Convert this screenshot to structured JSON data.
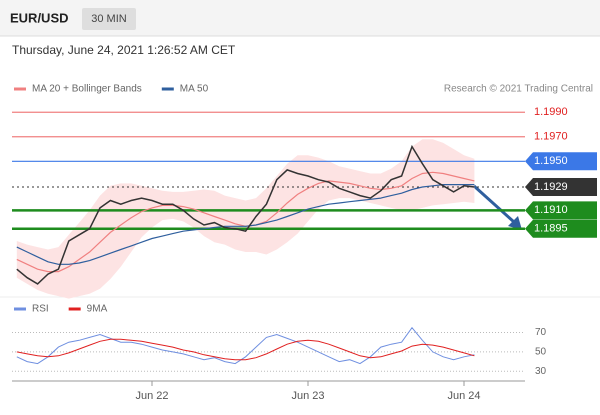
{
  "header": {
    "symbol": "EUR/USD",
    "timeframe": "30 MIN",
    "timestamp": "Thursday, June 24, 2021 1:26:52 AM CET"
  },
  "chart_data": [
    {
      "type": "line",
      "source": "Research © 2021 Trading Central",
      "color": "#333333",
      "values": [
        1.1862,
        1.1855,
        1.185,
        1.1858,
        1.1862,
        1.1885,
        1.189,
        1.1895,
        1.1912,
        1.1918,
        1.1915,
        1.1918,
        1.192,
        1.1918,
        1.1915,
        1.1915,
        1.191,
        1.1903,
        1.1898,
        1.19,
        1.1896,
        1.1895,
        1.1893,
        1.1905,
        1.1915,
        1.1935,
        1.1943,
        1.194,
        1.1938,
        1.1935,
        1.1933,
        1.1928,
        1.1925,
        1.1922,
        1.192,
        1.1926,
        1.1935,
        1.1938,
        1.1962,
        1.1948,
        1.1935,
        1.193,
        1.1925,
        1.193,
        1.1929
      ],
      "series": [
        {
          "name": "MA 20 + Bollinger Bands",
          "color": "#f08080",
          "band_color": "#fde3e3",
          "values": [
            1.187,
            1.1866,
            1.1862,
            1.186,
            1.186,
            1.1864,
            1.187,
            1.1876,
            1.1884,
            1.1892,
            1.1898,
            1.1904,
            1.1909,
            1.1912,
            1.1914,
            1.1914,
            1.1913,
            1.1911,
            1.1908,
            1.1905,
            1.1902,
            1.1899,
            1.1897,
            1.1898,
            1.1901,
            1.1908,
            1.1916,
            1.1923,
            1.1928,
            1.1932,
            1.1934,
            1.1933,
            1.1932,
            1.193,
            1.1928,
            1.1927,
            1.1928,
            1.193,
            1.1936,
            1.194,
            1.1941,
            1.194,
            1.1938,
            1.1936,
            1.1934
          ],
          "upper": [
            1.1885,
            1.1882,
            1.188,
            1.1878,
            1.188,
            1.189,
            1.19,
            1.191,
            1.1922,
            1.193,
            1.1932,
            1.1932,
            1.193,
            1.1928,
            1.1926,
            1.1925,
            1.1925,
            1.1926,
            1.1927,
            1.1926,
            1.1922,
            1.192,
            1.1918,
            1.192,
            1.1928,
            1.1938,
            1.1948,
            1.1955,
            1.1955,
            1.1953,
            1.195,
            1.1946,
            1.1944,
            1.1942,
            1.194,
            1.194,
            1.1944,
            1.195,
            1.1962,
            1.1968,
            1.1968,
            1.1965,
            1.196,
            1.1955,
            1.1952
          ],
          "lower": [
            1.1855,
            1.185,
            1.1845,
            1.1842,
            1.184,
            1.1838,
            1.184,
            1.1842,
            1.1846,
            1.1854,
            1.1864,
            1.1876,
            1.1888,
            1.1896,
            1.1902,
            1.1903,
            1.1901,
            1.1896,
            1.1889,
            1.1884,
            1.1882,
            1.1878,
            1.1876,
            1.1876,
            1.1874,
            1.1878,
            1.1884,
            1.1891,
            1.1901,
            1.1911,
            1.1918,
            1.192,
            1.192,
            1.1918,
            1.1916,
            1.1914,
            1.1912,
            1.191,
            1.191,
            1.1912,
            1.1914,
            1.1915,
            1.1916,
            1.1917,
            1.1916
          ]
        },
        {
          "name": "MA 50",
          "color": "#2f5f9e",
          "values": [
            1.188,
            1.1876,
            1.1872,
            1.1868,
            1.1866,
            1.1866,
            1.1867,
            1.1869,
            1.1872,
            1.1875,
            1.1878,
            1.1881,
            1.1884,
            1.1887,
            1.1889,
            1.1891,
            1.1893,
            1.1894,
            1.1895,
            1.1896,
            1.1897,
            1.1897,
            1.1897,
            1.1898,
            1.19,
            1.1902,
            1.1905,
            1.1908,
            1.1911,
            1.1913,
            1.1915,
            1.1916,
            1.1917,
            1.1918,
            1.1919,
            1.192,
            1.1922,
            1.1924,
            1.1927,
            1.1929,
            1.193,
            1.1931,
            1.1931,
            1.1931,
            1.1931
          ]
        }
      ],
      "levels": [
        {
          "value": 1.199,
          "label": "1.1990",
          "color": "#f08080",
          "text_color": "#e02020",
          "tag": false,
          "dotted": false
        },
        {
          "value": 1.197,
          "label": "1.1970",
          "color": "#f08080",
          "text_color": "#e02020",
          "tag": false,
          "dotted": false
        },
        {
          "value": 1.195,
          "label": "1.1950",
          "color": "#3b78e7",
          "text_color": "#ffffff",
          "tag": true,
          "dotted": false
        },
        {
          "value": 1.1929,
          "label": "1.1929",
          "color": "#333333",
          "text_color": "#ffffff",
          "tag": true,
          "dotted": true
        },
        {
          "value": 1.191,
          "label": "1.1910",
          "color": "#1e8c1e",
          "text_color": "#ffffff",
          "tag": true,
          "dotted": false
        },
        {
          "value": 1.1895,
          "label": "1.1895",
          "color": "#1e8c1e",
          "text_color": "#ffffff",
          "tag": true,
          "dotted": false
        }
      ],
      "ylim": [
        1.1845,
        1.2
      ]
    },
    {
      "type": "line",
      "categories": [
        null,
        null,
        null,
        null,
        null,
        null,
        null,
        null,
        null,
        null,
        null,
        null,
        null,
        "Jun 22",
        null,
        null,
        null,
        null,
        null,
        null,
        null,
        null,
        null,
        null,
        null,
        null,
        null,
        null,
        "Jun 23",
        null,
        null,
        null,
        null,
        null,
        null,
        null,
        null,
        null,
        null,
        null,
        null,
        null,
        null,
        "Jun 24",
        null
      ],
      "series": [
        {
          "name": "RSI",
          "color": "#6f8fe0",
          "values": [
            45,
            40,
            38,
            45,
            55,
            60,
            62,
            65,
            68,
            64,
            60,
            60,
            58,
            55,
            52,
            50,
            48,
            45,
            42,
            44,
            40,
            38,
            45,
            55,
            65,
            68,
            64,
            60,
            55,
            50,
            45,
            40,
            42,
            38,
            45,
            55,
            58,
            60,
            75,
            62,
            50,
            45,
            42,
            45,
            47
          ]
        },
        {
          "name": "9MA",
          "color": "#e02020",
          "values": [
            50,
            48,
            46,
            45,
            46,
            49,
            53,
            57,
            61,
            63,
            63,
            62,
            61,
            59,
            57,
            55,
            52,
            50,
            47,
            45,
            43,
            42,
            42,
            44,
            48,
            53,
            58,
            61,
            62,
            61,
            58,
            54,
            50,
            46,
            44,
            45,
            48,
            51,
            56,
            58,
            57,
            55,
            52,
            49,
            46
          ]
        }
      ],
      "ylim": [
        20,
        85
      ],
      "yticks": [
        30,
        50,
        70
      ],
      "grid": true
    }
  ]
}
